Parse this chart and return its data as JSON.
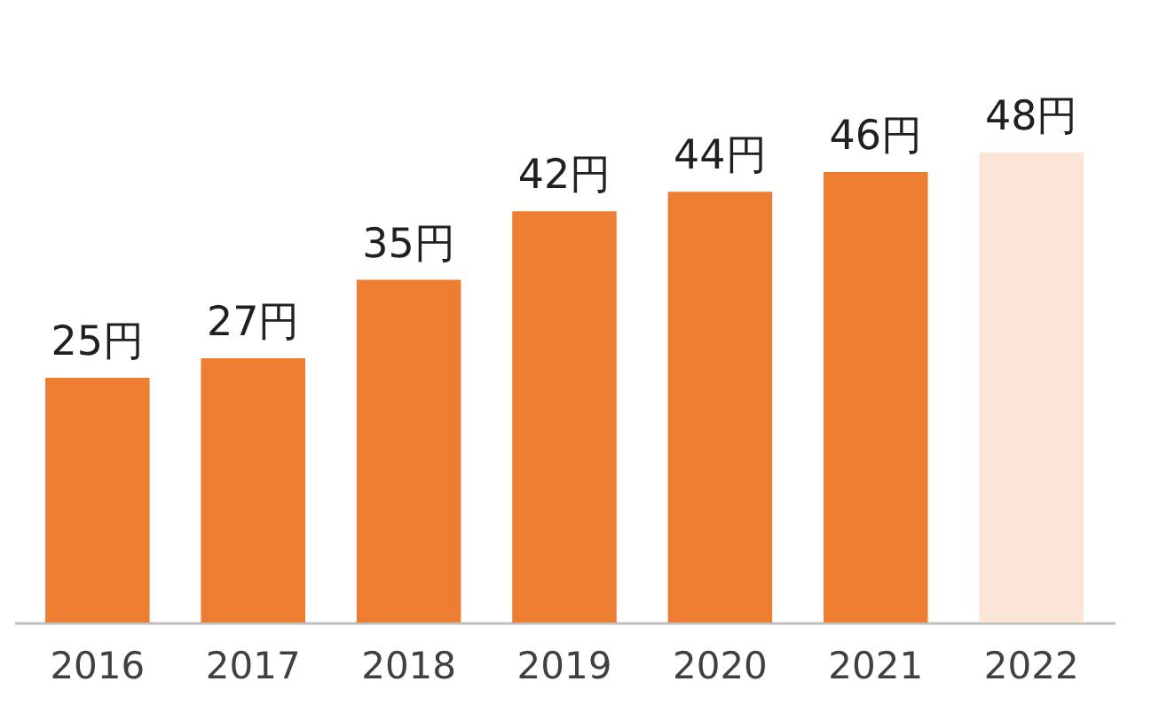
{
  "chart_data": {
    "type": "bar",
    "categories": [
      "2016",
      "2017",
      "2018",
      "2019",
      "2020",
      "2021",
      "2022"
    ],
    "values": [
      25,
      27,
      35,
      42,
      44,
      46,
      48
    ],
    "colors": [
      "#ed7d31",
      "#ed7d31",
      "#ed7d31",
      "#ed7d31",
      "#ed7d31",
      "#ed7d31",
      "#fbe5d6"
    ],
    "value_labels": [
      "25円",
      "27円",
      "35円",
      "42円",
      "44円",
      "46円",
      "48円"
    ]
  }
}
